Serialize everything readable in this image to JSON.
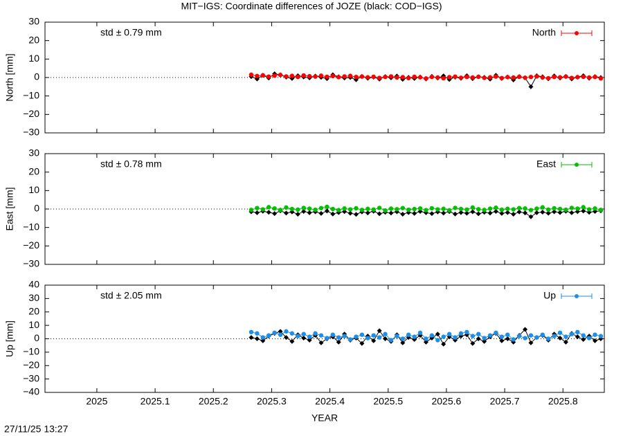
{
  "title": "MIT−IGS: Coordinate differences of JOZE (black: COD−IGS)",
  "timestamp": "27/11/25 13:27",
  "chart_data": [
    {
      "type": "line",
      "ylabel": "North [mm]",
      "annotation": "std ± 0.79 mm",
      "annotation_color": "#ff0000",
      "legend": "top-right",
      "zero_line": true,
      "xlim": [
        2024.911,
        2025.871
      ],
      "xticks": [
        2025,
        2025.1,
        2025.2,
        2025.3,
        2025.4,
        2025.5,
        2025.6,
        2025.7,
        2025.8
      ],
      "ylim": [
        -30,
        30
      ],
      "yticks": [
        {
          "value": -30,
          "label": "−30"
        },
        {
          "value": -20,
          "label": "−20"
        },
        {
          "value": -10,
          "label": "−10"
        },
        0,
        10,
        20,
        30
      ],
      "x": [
        2025.265,
        2025.275,
        2025.285,
        2025.295,
        2025.305,
        2025.315,
        2025.325,
        2025.335,
        2025.345,
        2025.355,
        2025.365,
        2025.375,
        2025.385,
        2025.395,
        2025.405,
        2025.415,
        2025.425,
        2025.435,
        2025.445,
        2025.455,
        2025.465,
        2025.475,
        2025.485,
        2025.495,
        2025.505,
        2025.515,
        2025.525,
        2025.535,
        2025.545,
        2025.555,
        2025.565,
        2025.575,
        2025.585,
        2025.595,
        2025.605,
        2025.615,
        2025.625,
        2025.635,
        2025.645,
        2025.655,
        2025.665,
        2025.675,
        2025.685,
        2025.695,
        2025.705,
        2025.715,
        2025.725,
        2025.735,
        2025.745,
        2025.755,
        2025.765,
        2025.775,
        2025.785,
        2025.795,
        2025.805,
        2025.815,
        2025.825,
        2025.835,
        2025.845,
        2025.855,
        2025.865
      ],
      "series": [
        {
          "color": "#000000",
          "values": [
            0.5,
            -0.8,
            1.2,
            -0.3,
            2.0,
            1.5,
            0.2,
            -0.5,
            1.0,
            0.3,
            -0.2,
            0.8,
            0.1,
            -0.6,
            1.5,
            0.4,
            -0.3,
            0.0,
            -1.2,
            0.6,
            -0.4,
            0.2,
            -0.9,
            0.5,
            -0.2,
            0.8,
            -1.0,
            0.1,
            -0.5,
            0.3,
            -0.8,
            0.6,
            -0.3,
            0.9,
            -1.1,
            0.2,
            -0.4,
            1.0,
            -0.6,
            0.4,
            0.1,
            -0.9,
            1.2,
            -0.5,
            0.3,
            -1.3,
            0.5,
            -0.2,
            -5.0,
            1.0,
            0.4,
            -0.7,
            0.9,
            -0.3,
            0.6,
            -0.8,
            0.2,
            1.0,
            -0.4,
            0.5,
            0.0
          ]
        },
        {
          "name": "North",
          "color": "#ff0000",
          "values": [
            1.5,
            0.8,
            1.2,
            0.5,
            1.0,
            1.4,
            0.6,
            0.9,
            0.3,
            1.1,
            0.7,
            0.5,
            1.0,
            0.4,
            0.8,
            0.2,
            0.6,
            0.9,
            0.3,
            0.5,
            0.1,
            0.4,
            -0.2,
            0.3,
            0.6,
            0.0,
            0.2,
            -0.3,
            0.4,
            0.1,
            -0.5,
            0.3,
            0.0,
            -0.4,
            0.2,
            0.5,
            -0.1,
            0.3,
            0.0,
            0.4,
            -0.2,
            0.1,
            0.5,
            -0.3,
            0.2,
            0.0,
            0.4,
            -0.1,
            0.3,
            0.6,
            0.0,
            -0.4,
            0.3,
            0.1,
            0.5,
            -0.2,
            0.2,
            0.4,
            0.0,
            0.3,
            -0.5
          ]
        }
      ]
    },
    {
      "type": "line",
      "ylabel": "East [mm]",
      "annotation": "std ± 0.78 mm",
      "annotation_color": "#00c000",
      "legend": "top-right",
      "zero_line": true,
      "xlim": [
        2024.911,
        2025.871
      ],
      "xticks": [
        2025,
        2025.1,
        2025.2,
        2025.3,
        2025.4,
        2025.5,
        2025.6,
        2025.7,
        2025.8
      ],
      "ylim": [
        -30,
        30
      ],
      "yticks": [
        {
          "value": -30,
          "label": "−30"
        },
        {
          "value": -20,
          "label": "−20"
        },
        {
          "value": -10,
          "label": "−10"
        },
        0,
        10,
        20,
        30
      ],
      "x": [
        2025.265,
        2025.275,
        2025.285,
        2025.295,
        2025.305,
        2025.315,
        2025.325,
        2025.335,
        2025.345,
        2025.355,
        2025.365,
        2025.375,
        2025.385,
        2025.395,
        2025.405,
        2025.415,
        2025.425,
        2025.435,
        2025.445,
        2025.455,
        2025.465,
        2025.475,
        2025.485,
        2025.495,
        2025.505,
        2025.515,
        2025.525,
        2025.535,
        2025.545,
        2025.555,
        2025.565,
        2025.575,
        2025.585,
        2025.595,
        2025.605,
        2025.615,
        2025.625,
        2025.635,
        2025.645,
        2025.655,
        2025.665,
        2025.675,
        2025.685,
        2025.695,
        2025.705,
        2025.715,
        2025.725,
        2025.735,
        2025.745,
        2025.755,
        2025.765,
        2025.775,
        2025.785,
        2025.795,
        2025.805,
        2025.815,
        2025.825,
        2025.835,
        2025.845,
        2025.855,
        2025.865
      ],
      "series": [
        {
          "color": "#000000",
          "values": [
            -1.5,
            -2.0,
            -1.2,
            -1.8,
            -2.5,
            -1.0,
            -2.2,
            -1.6,
            -2.8,
            -1.3,
            -2.0,
            -1.5,
            -2.4,
            -1.1,
            -2.7,
            -1.9,
            -1.4,
            -2.3,
            -2.9,
            -1.6,
            -2.1,
            -1.2,
            -2.6,
            -1.8,
            -2.2,
            -1.5,
            -2.8,
            -1.9,
            -2.4,
            -1.3,
            -2.0,
            -2.5,
            -1.6,
            -2.2,
            -1.4,
            -2.7,
            -1.9,
            -2.3,
            -1.5,
            -2.6,
            -1.8,
            -2.2,
            -1.3,
            -2.4,
            -1.9,
            -2.8,
            -1.6,
            -2.1,
            -4.2,
            -2.0,
            -1.7,
            -2.3,
            -1.5,
            -1.9,
            -1.2,
            -2.0,
            -1.4,
            -1.1,
            -1.8,
            -1.3,
            -1.0
          ]
        },
        {
          "name": "East",
          "color": "#00c000",
          "values": [
            -0.5,
            0.5,
            -0.2,
            1.0,
            0.3,
            -0.5,
            0.8,
            0.0,
            -0.3,
            0.6,
            0.2,
            -0.4,
            0.5,
            1.2,
            0.0,
            -0.6,
            0.3,
            -0.2,
            0.4,
            -0.5,
            0.1,
            -0.3,
            0.6,
            -0.8,
            0.2,
            -0.1,
            0.5,
            -0.4,
            0.0,
            0.3,
            -0.6,
            0.4,
            -0.2,
            0.1,
            -0.7,
            0.6,
            0.0,
            -0.3,
            0.8,
            -0.1,
            -0.5,
            0.2,
            0.7,
            -0.4,
            0.1,
            -0.2,
            0.5,
            0.3,
            -0.6,
            0.2,
            0.9,
            -0.3,
            0.4,
            0.0,
            -0.4,
            0.6,
            0.2,
            1.0,
            -0.2,
            0.3,
            -0.5
          ]
        }
      ]
    },
    {
      "type": "line",
      "ylabel": "Up [mm]",
      "xlabel": "YEAR",
      "annotation": "std ± 2.05 mm",
      "annotation_color": "#1e8fe8",
      "legend": "top-right",
      "zero_line": true,
      "show_xtick_labels": true,
      "xlim": [
        2024.911,
        2025.871
      ],
      "xticks": [
        2025,
        2025.1,
        2025.2,
        2025.3,
        2025.4,
        2025.5,
        2025.6,
        2025.7,
        2025.8
      ],
      "ylim": [
        -40,
        40
      ],
      "yticks": [
        {
          "value": -40,
          "label": "−40"
        },
        {
          "value": -30,
          "label": "−30"
        },
        {
          "value": -20,
          "label": "−20"
        },
        {
          "value": -10,
          "label": "−10"
        },
        0,
        10,
        20,
        30,
        40
      ],
      "x": [
        2025.265,
        2025.275,
        2025.285,
        2025.295,
        2025.305,
        2025.315,
        2025.325,
        2025.335,
        2025.345,
        2025.355,
        2025.365,
        2025.375,
        2025.385,
        2025.395,
        2025.405,
        2025.415,
        2025.425,
        2025.435,
        2025.445,
        2025.455,
        2025.465,
        2025.475,
        2025.485,
        2025.495,
        2025.505,
        2025.515,
        2025.525,
        2025.535,
        2025.545,
        2025.555,
        2025.565,
        2025.575,
        2025.585,
        2025.595,
        2025.605,
        2025.615,
        2025.625,
        2025.635,
        2025.645,
        2025.655,
        2025.665,
        2025.675,
        2025.685,
        2025.695,
        2025.705,
        2025.715,
        2025.725,
        2025.735,
        2025.745,
        2025.755,
        2025.765,
        2025.775,
        2025.785,
        2025.795,
        2025.805,
        2025.815,
        2025.825,
        2025.835,
        2025.845,
        2025.855,
        2025.865
      ],
      "series": [
        {
          "color": "#000000",
          "values": [
            1.0,
            0.0,
            -1.5,
            2.0,
            4.0,
            5.5,
            1.0,
            -2.0,
            3.0,
            0.5,
            -1.0,
            2.5,
            -3.0,
            0.0,
            1.5,
            -2.5,
            3.5,
            -1.0,
            0.5,
            -3.5,
            2.0,
            -1.5,
            6.0,
            0.0,
            -2.0,
            3.0,
            -3.0,
            1.0,
            -0.5,
            2.5,
            -2.5,
            0.5,
            3.5,
            -4.0,
            1.5,
            -1.0,
            2.0,
            3.0,
            -3.5,
            0.0,
            -2.0,
            1.5,
            4.0,
            -1.5,
            0.0,
            -2.5,
            2.5,
            7.0,
            -3.0,
            1.0,
            2.5,
            -1.0,
            3.5,
            0.5,
            -2.5,
            4.0,
            1.5,
            -0.5,
            2.0,
            -1.5,
            0.0
          ]
        },
        {
          "name": "Up",
          "color": "#1e8fe8",
          "values": [
            5.0,
            4.0,
            1.0,
            2.5,
            4.5,
            3.0,
            5.5,
            4.0,
            2.0,
            3.5,
            1.5,
            4.0,
            2.5,
            0.5,
            3.0,
            1.0,
            2.0,
            -0.5,
            1.5,
            3.0,
            0.5,
            2.5,
            1.0,
            3.5,
            -1.0,
            2.0,
            0.0,
            3.0,
            1.5,
            4.5,
            0.0,
            2.5,
            -1.0,
            1.5,
            3.5,
            1.0,
            4.0,
            5.0,
            2.0,
            3.5,
            0.5,
            2.5,
            4.5,
            1.5,
            3.0,
            -0.5,
            2.0,
            0.5,
            2.5,
            1.0,
            3.0,
            0.0,
            2.0,
            4.5,
            1.5,
            3.5,
            5.0,
            2.5,
            0.5,
            3.0,
            2.0
          ]
        }
      ]
    }
  ]
}
